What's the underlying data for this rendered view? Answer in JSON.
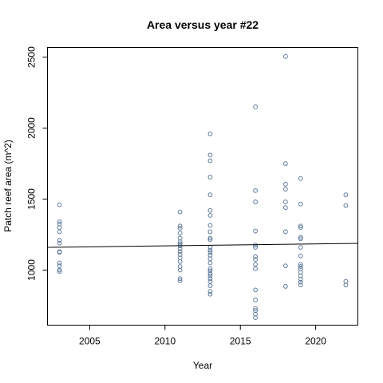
{
  "chart_data": {
    "type": "scatter",
    "title": "Area versus year #22",
    "xlabel": "Year",
    "ylabel": "Patch reef area (m^2)",
    "xlim": [
      2002.2,
      2022.8
    ],
    "ylim": [
      612,
      2568
    ],
    "xticks": [
      2005,
      2010,
      2015,
      2020
    ],
    "yticks": [
      1000,
      1500,
      2000,
      2500
    ],
    "grid": false,
    "marker_color": "#607a9a",
    "series": [
      {
        "points": [
          {
            "x": 2003,
            "y": 1460
          },
          {
            "x": 2003,
            "y": 1340
          },
          {
            "x": 2003,
            "y": 1325
          },
          {
            "x": 2003,
            "y": 1300
          },
          {
            "x": 2003,
            "y": 1270
          },
          {
            "x": 2003,
            "y": 1210
          },
          {
            "x": 2003,
            "y": 1190
          },
          {
            "x": 2003,
            "y": 1130
          },
          {
            "x": 2003,
            "y": 1125
          },
          {
            "x": 2003,
            "y": 1050
          },
          {
            "x": 2003,
            "y": 1030
          },
          {
            "x": 2003,
            "y": 1000
          },
          {
            "x": 2003,
            "y": 990
          },
          {
            "x": 2011,
            "y": 1410
          },
          {
            "x": 2011,
            "y": 1310
          },
          {
            "x": 2011,
            "y": 1295
          },
          {
            "x": 2011,
            "y": 1260
          },
          {
            "x": 2011,
            "y": 1225
          },
          {
            "x": 2011,
            "y": 1200
          },
          {
            "x": 2011,
            "y": 1185
          },
          {
            "x": 2011,
            "y": 1170
          },
          {
            "x": 2011,
            "y": 1150
          },
          {
            "x": 2011,
            "y": 1130
          },
          {
            "x": 2011,
            "y": 1110
          },
          {
            "x": 2011,
            "y": 1085
          },
          {
            "x": 2011,
            "y": 1060
          },
          {
            "x": 2011,
            "y": 1025
          },
          {
            "x": 2011,
            "y": 1000
          },
          {
            "x": 2011,
            "y": 940
          },
          {
            "x": 2011,
            "y": 925
          },
          {
            "x": 2013,
            "y": 1960
          },
          {
            "x": 2013,
            "y": 1810
          },
          {
            "x": 2013,
            "y": 1770
          },
          {
            "x": 2013,
            "y": 1655
          },
          {
            "x": 2013,
            "y": 1530
          },
          {
            "x": 2013,
            "y": 1420
          },
          {
            "x": 2013,
            "y": 1385
          },
          {
            "x": 2013,
            "y": 1315
          },
          {
            "x": 2013,
            "y": 1270
          },
          {
            "x": 2013,
            "y": 1225
          },
          {
            "x": 2013,
            "y": 1215
          },
          {
            "x": 2013,
            "y": 1160
          },
          {
            "x": 2013,
            "y": 1140
          },
          {
            "x": 2013,
            "y": 1125
          },
          {
            "x": 2013,
            "y": 1105
          },
          {
            "x": 2013,
            "y": 1080
          },
          {
            "x": 2013,
            "y": 1050
          },
          {
            "x": 2013,
            "y": 1010
          },
          {
            "x": 2013,
            "y": 995
          },
          {
            "x": 2013,
            "y": 975
          },
          {
            "x": 2013,
            "y": 960
          },
          {
            "x": 2013,
            "y": 940
          },
          {
            "x": 2013,
            "y": 920
          },
          {
            "x": 2013,
            "y": 890
          },
          {
            "x": 2013,
            "y": 850
          },
          {
            "x": 2013,
            "y": 830
          },
          {
            "x": 2016,
            "y": 2150
          },
          {
            "x": 2016,
            "y": 1560
          },
          {
            "x": 2016,
            "y": 1480
          },
          {
            "x": 2016,
            "y": 1275
          },
          {
            "x": 2016,
            "y": 1175
          },
          {
            "x": 2016,
            "y": 1160
          },
          {
            "x": 2016,
            "y": 1095
          },
          {
            "x": 2016,
            "y": 1075
          },
          {
            "x": 2016,
            "y": 1040
          },
          {
            "x": 2016,
            "y": 1010
          },
          {
            "x": 2016,
            "y": 860
          },
          {
            "x": 2016,
            "y": 790
          },
          {
            "x": 2016,
            "y": 730
          },
          {
            "x": 2016,
            "y": 715
          },
          {
            "x": 2016,
            "y": 690
          },
          {
            "x": 2016,
            "y": 665
          },
          {
            "x": 2018,
            "y": 2505
          },
          {
            "x": 2018,
            "y": 1750
          },
          {
            "x": 2018,
            "y": 1605
          },
          {
            "x": 2018,
            "y": 1570
          },
          {
            "x": 2018,
            "y": 1480
          },
          {
            "x": 2018,
            "y": 1440
          },
          {
            "x": 2018,
            "y": 1270
          },
          {
            "x": 2018,
            "y": 1030
          },
          {
            "x": 2018,
            "y": 885
          },
          {
            "x": 2019,
            "y": 1645
          },
          {
            "x": 2019,
            "y": 1465
          },
          {
            "x": 2019,
            "y": 1310
          },
          {
            "x": 2019,
            "y": 1300
          },
          {
            "x": 2019,
            "y": 1230
          },
          {
            "x": 2019,
            "y": 1220
          },
          {
            "x": 2019,
            "y": 1160
          },
          {
            "x": 2019,
            "y": 1100
          },
          {
            "x": 2019,
            "y": 1040
          },
          {
            "x": 2019,
            "y": 1025
          },
          {
            "x": 2019,
            "y": 1010
          },
          {
            "x": 2019,
            "y": 985
          },
          {
            "x": 2019,
            "y": 960
          },
          {
            "x": 2019,
            "y": 935
          },
          {
            "x": 2019,
            "y": 915
          },
          {
            "x": 2019,
            "y": 895
          },
          {
            "x": 2022,
            "y": 1530
          },
          {
            "x": 2022,
            "y": 1455
          },
          {
            "x": 2022,
            "y": 920
          },
          {
            "x": 2022,
            "y": 895
          }
        ]
      }
    ],
    "trend_line": {
      "x": [
        2002.2,
        2022.8
      ],
      "y": [
        1160,
        1188
      ]
    }
  }
}
